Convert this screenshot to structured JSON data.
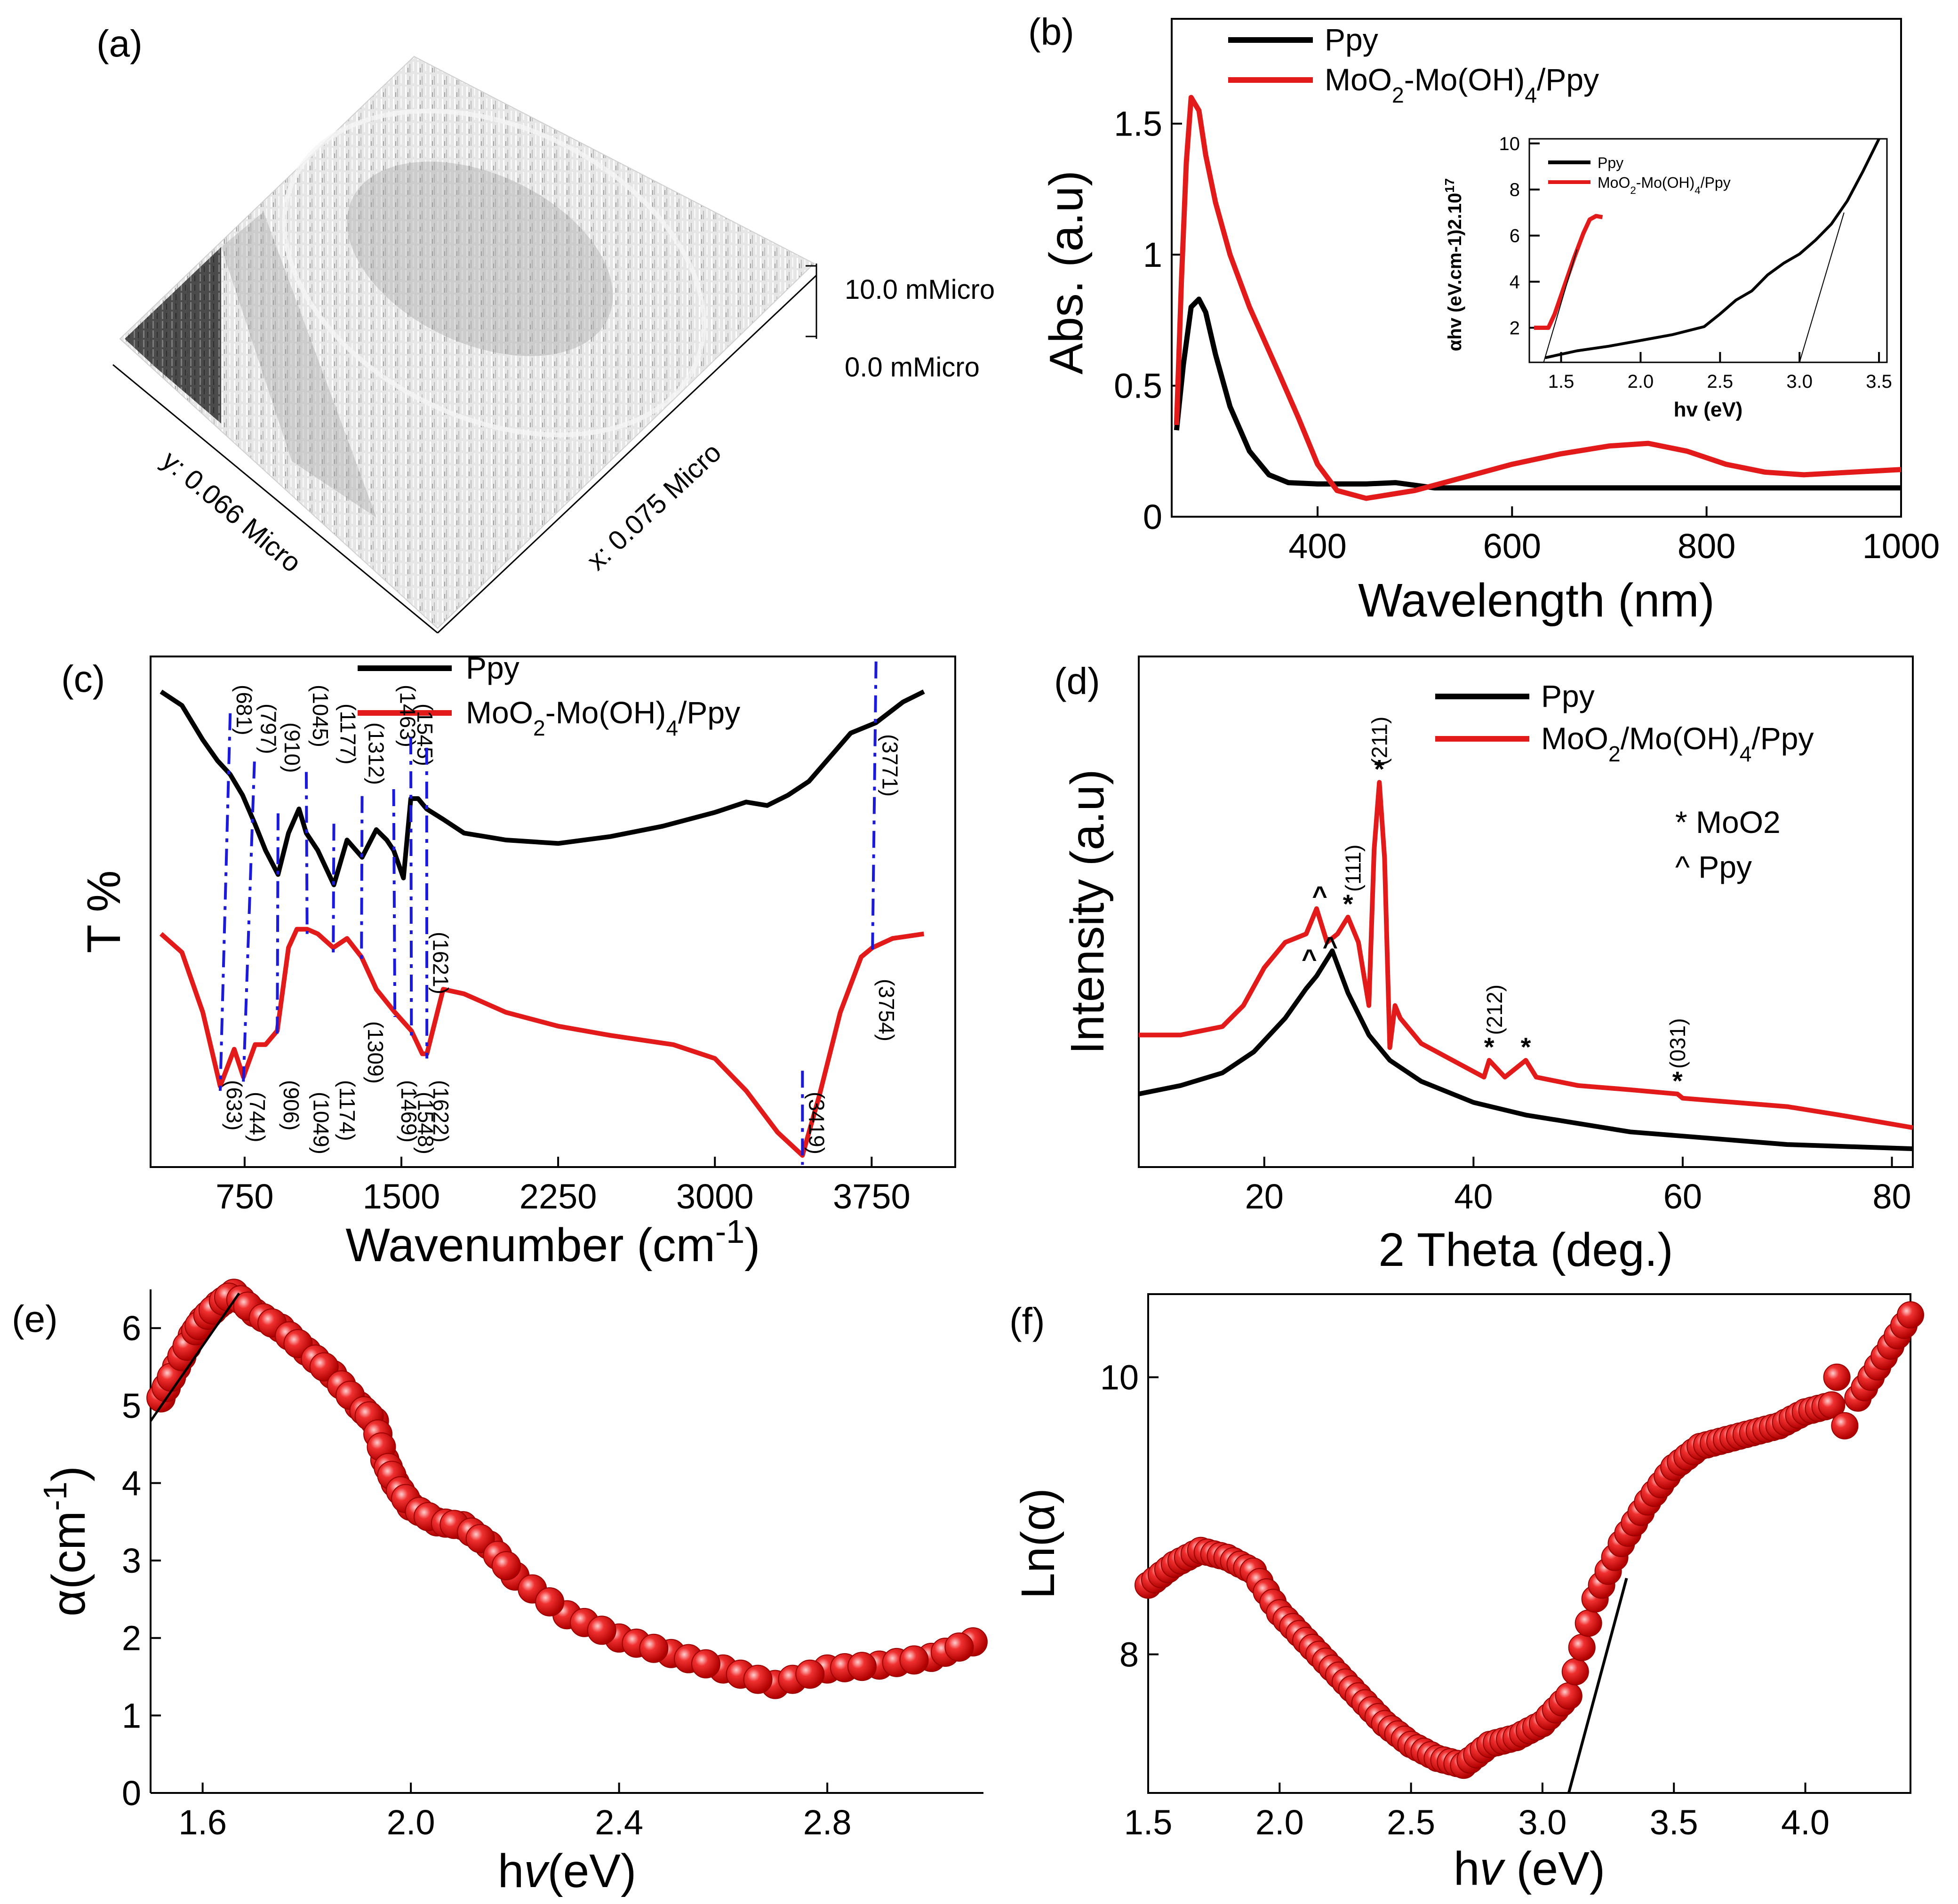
{
  "figure": {
    "panel_labels": [
      "(a)",
      "(b)",
      "(c)",
      "(d)",
      "(e)",
      "(f)"
    ]
  },
  "panel_a": {
    "label": "(a)",
    "x_axis_label": "x: 0.075 Micro",
    "y_axis_label": "y: 0.066 Micro",
    "z_top_label": "10.0 mMicro",
    "z_bottom_label": "0.0 mMicro"
  },
  "chart_data": [
    {
      "panel": "b",
      "label": "(b)",
      "type": "line",
      "title": "",
      "xlabel": "Wavelength (nm)",
      "ylabel": "Abs. (a.u)",
      "xlim": [
        250,
        1000
      ],
      "ylim": [
        0,
        1.9
      ],
      "xticks": [
        400,
        600,
        800,
        1000
      ],
      "yticks": [
        0.0,
        0.5,
        1.0,
        1.5
      ],
      "legend": [
        "Ppy",
        "MoO2-Mo(OH)4/Ppy"
      ],
      "series": [
        {
          "name": "Ppy",
          "color": "#000000",
          "x": [
            255,
            262,
            270,
            278,
            285,
            295,
            310,
            330,
            350,
            370,
            400,
            450,
            480,
            520,
            600,
            700,
            800,
            900,
            1000
          ],
          "y": [
            0.33,
            0.58,
            0.8,
            0.83,
            0.78,
            0.62,
            0.42,
            0.25,
            0.16,
            0.13,
            0.125,
            0.125,
            0.13,
            0.11,
            0.11,
            0.11,
            0.11,
            0.11,
            0.11
          ]
        },
        {
          "name": "MoO2-Mo(OH)4/Ppy",
          "color": "#e21a1a",
          "x": [
            255,
            260,
            265,
            270,
            278,
            285,
            295,
            310,
            330,
            360,
            380,
            400,
            420,
            450,
            500,
            550,
            600,
            650,
            700,
            740,
            780,
            820,
            860,
            900,
            950,
            1000
          ],
          "y": [
            0.35,
            0.9,
            1.35,
            1.6,
            1.55,
            1.38,
            1.2,
            1.0,
            0.8,
            0.55,
            0.38,
            0.2,
            0.1,
            0.07,
            0.1,
            0.15,
            0.2,
            0.24,
            0.27,
            0.28,
            0.25,
            0.2,
            0.17,
            0.16,
            0.17,
            0.18
          ]
        }
      ],
      "inset": {
        "xlabel": "hv (eV)",
        "ylabel": "αhv (eV.cm-1)2.10",
        "ylabel_sup": "17",
        "xlim": [
          1.3,
          3.55
        ],
        "ylim": [
          0.5,
          10.2
        ],
        "xticks": [
          1.5,
          2.0,
          2.5,
          3.0,
          3.5
        ],
        "yticks": [
          2,
          4,
          6,
          8,
          10
        ],
        "legend": [
          "Ppy",
          "MoO2-Mo(OH)4/Ppy"
        ],
        "series": [
          {
            "name": "Ppy",
            "color": "#000000",
            "x": [
              1.4,
              1.6,
              1.8,
              2.0,
              2.2,
              2.4,
              2.5,
              2.6,
              2.7,
              2.8,
              2.9,
              3.0,
              3.1,
              3.2,
              3.3,
              3.4,
              3.5
            ],
            "y": [
              0.7,
              1.0,
              1.2,
              1.45,
              1.7,
              2.05,
              2.6,
              3.2,
              3.6,
              4.3,
              4.8,
              5.2,
              5.8,
              6.5,
              7.5,
              8.8,
              10.2
            ]
          },
          {
            "name": "MoO2-Mo(OH)4/Ppy",
            "color": "#e21a1a",
            "x": [
              1.33,
              1.42,
              1.46,
              1.52,
              1.58,
              1.64,
              1.68,
              1.72,
              1.76
            ],
            "y": [
              2.0,
              2.0,
              2.6,
              3.8,
              5.0,
              6.1,
              6.7,
              6.85,
              6.8
            ]
          }
        ],
        "fit_lines": [
          {
            "x": [
              3.0,
              3.28
            ],
            "y": [
              0.5,
              7.0
            ]
          },
          {
            "x": [
              1.39,
              1.6
            ],
            "y": [
              0.5,
              5.4
            ]
          }
        ]
      }
    },
    {
      "panel": "c",
      "label": "(c)",
      "type": "line",
      "title": "",
      "xlabel": "Wavenumber (cm-1)",
      "ylabel": "T %",
      "xlim": [
        300,
        4150
      ],
      "ylim": [
        0,
        100
      ],
      "xticks": [
        750,
        1500,
        2250,
        3000,
        3750
      ],
      "legend": [
        "Ppy",
        "MoO2-Mo(OH)4/Ppy"
      ],
      "series": [
        {
          "name": "Ppy",
          "color": "#000000",
          "x": [
            350,
            450,
            550,
            620,
            681,
            740,
            797,
            850,
            910,
            960,
            1010,
            1045,
            1100,
            1177,
            1240,
            1312,
            1380,
            1430,
            1463,
            1510,
            1545,
            1580,
            1621,
            1700,
            1800,
            2000,
            2250,
            2500,
            2750,
            3000,
            3150,
            3250,
            3350,
            3450,
            3550,
            3650,
            3771,
            3900,
            4000
          ],
          "y": [
            98,
            94,
            84,
            78,
            74,
            68,
            60,
            52,
            45,
            57,
            64,
            57,
            52,
            42,
            55,
            50,
            58,
            55,
            52,
            44,
            67,
            67,
            64,
            61,
            57,
            55,
            54,
            56,
            59,
            63,
            66,
            65,
            68,
            72,
            79,
            86,
            89,
            95,
            98
          ],
          "labels": [
            "(681)",
            "(797)",
            "(910)",
            "(1045)",
            "(1177)",
            "(1312)",
            "(1463)",
            "(1545)",
            "(1621)",
            "(3771)"
          ]
        },
        {
          "name": "MoO2-Mo(OH)4/Ppy",
          "color": "#e21a1a",
          "x": [
            350,
            450,
            550,
            633,
            700,
            744,
            800,
            850,
            906,
            960,
            1000,
            1049,
            1100,
            1174,
            1240,
            1309,
            1380,
            1469,
            1548,
            1600,
            1622,
            1700,
            1800,
            2000,
            2250,
            2500,
            2800,
            3000,
            3150,
            3300,
            3419,
            3500,
            3600,
            3700,
            3754,
            3850,
            4000
          ],
          "y": [
            47,
            43,
            30,
            14,
            22,
            16,
            23,
            23,
            26,
            44,
            48,
            48,
            47,
            44,
            46,
            42,
            35,
            30,
            26,
            21,
            21,
            35,
            34,
            30,
            27,
            25,
            23,
            20,
            13,
            4,
            -1,
            12,
            30,
            42,
            44,
            46,
            47
          ],
          "labels": [
            "(633)",
            "(744)",
            "(906)",
            "(1049)",
            "(1174)",
            "(1309)",
            "(1469)",
            "(1548)",
            "(1622)",
            "(3419)",
            "(3754)"
          ]
        }
      ]
    },
    {
      "panel": "d",
      "label": "(d)",
      "type": "line",
      "title": "",
      "xlabel": "2 Theta (deg.)",
      "ylabel": "Intensity (a.u)",
      "xlim": [
        8,
        82
      ],
      "ylim": [
        0,
        100
      ],
      "xticks": [
        20,
        40,
        60,
        80
      ],
      "legend": [
        "Ppy",
        "MoO2/Mo(OH)4/Ppy"
      ],
      "series": [
        {
          "name": "Ppy",
          "color": "#000000",
          "x": [
            8,
            12,
            16,
            19,
            22,
            24,
            25,
            26.5,
            28,
            30,
            32,
            35,
            40,
            45,
            50,
            55,
            60,
            70,
            82
          ],
          "y": [
            14,
            16,
            19,
            24,
            32,
            39,
            42,
            48,
            38,
            28,
            22,
            17,
            12,
            9,
            7,
            5,
            4,
            2,
            1
          ]
        },
        {
          "name": "MoO2/Mo(OH)4/Ppy",
          "color": "#e21a1a",
          "x": [
            8,
            12,
            16,
            18,
            20,
            22,
            24,
            25,
            26,
            27,
            28,
            29,
            30,
            30.5,
            31,
            31.5,
            32,
            32.5,
            33,
            35,
            38,
            41,
            41.5,
            43,
            45,
            46,
            50,
            55,
            59.5,
            60,
            65,
            70,
            75,
            82
          ],
          "y": [
            28,
            28,
            30,
            35,
            44,
            50,
            52,
            58,
            50,
            52,
            56,
            50,
            35,
            72,
            88,
            70,
            25,
            35,
            32,
            26,
            22,
            18,
            22,
            18,
            22,
            18,
            16,
            15,
            14,
            13,
            12,
            11,
            9,
            6
          ]
        }
      ],
      "annotations": [
        {
          "text": "(211)",
          "x": 31,
          "y": 92,
          "rotated": true
        },
        {
          "text": "*",
          "x": 31,
          "y": 89
        },
        {
          "text": "(111)",
          "x": 28.5,
          "y": 62,
          "rotated": true
        },
        {
          "text": "*",
          "x": 28,
          "y": 57
        },
        {
          "text": "^",
          "x": 25.3,
          "y": 59
        },
        {
          "text": "^",
          "x": 24.3,
          "y": 44
        },
        {
          "text": "^",
          "x": 26.3,
          "y": 47
        },
        {
          "text": "(212)",
          "x": 42,
          "y": 28,
          "rotated": true
        },
        {
          "text": "*",
          "x": 41.5,
          "y": 23
        },
        {
          "text": "*",
          "x": 45,
          "y": 23
        },
        {
          "text": "(031)",
          "x": 59.5,
          "y": 20,
          "rotated": true
        },
        {
          "text": "*",
          "x": 59.5,
          "y": 15
        }
      ],
      "key": [
        "* MoO2",
        "^ Ppy"
      ]
    },
    {
      "panel": "e",
      "label": "(e)",
      "type": "scatter",
      "title": "",
      "xlabel": "hv(eV)",
      "ylabel": "α(cm-1)",
      "xlim": [
        1.5,
        3.1
      ],
      "ylim": [
        0,
        6.5
      ],
      "xticks": [
        1.6,
        2.0,
        2.4,
        2.8
      ],
      "yticks": [
        0,
        1,
        2,
        3,
        4,
        5,
        6
      ],
      "series": [
        {
          "name": "α",
          "color": "#e21a1a",
          "x": [
            1.52,
            1.55,
            1.58,
            1.6,
            1.63,
            1.66,
            1.7,
            1.75,
            1.8,
            1.85,
            1.9,
            1.93,
            1.95,
            1.97,
            2.0,
            2.05,
            2.1,
            2.15,
            2.2,
            2.3,
            2.4,
            2.5,
            2.6,
            2.7,
            2.8,
            2.9,
            3.0,
            3.08
          ],
          "y": [
            5.1,
            5.5,
            5.9,
            6.1,
            6.3,
            6.45,
            6.2,
            6.0,
            5.7,
            5.4,
            5.0,
            4.8,
            4.3,
            4.0,
            3.7,
            3.5,
            3.45,
            3.2,
            2.8,
            2.3,
            2.0,
            1.8,
            1.6,
            1.4,
            1.6,
            1.65,
            1.75,
            1.95
          ]
        }
      ],
      "fit_line": {
        "x": [
          1.5,
          1.67
        ],
        "y": [
          4.8,
          6.45
        ]
      }
    },
    {
      "panel": "f",
      "label": "(f)",
      "type": "scatter",
      "title": "",
      "xlabel": "hv (eV)",
      "ylabel": "Ln(α)",
      "xlim": [
        1.5,
        4.4
      ],
      "ylim": [
        7.0,
        10.6
      ],
      "xticks": [
        1.5,
        2.0,
        2.5,
        3.0,
        3.5,
        4.0
      ],
      "xtick_labels": [
        "1.5",
        "2.0",
        "2.5",
        "3.0",
        "3.5",
        "4.0"
      ],
      "yticks": [
        8,
        10
      ],
      "series": [
        {
          "name": "Ln(α)",
          "color": "#e21a1a",
          "x": [
            1.5,
            1.6,
            1.7,
            1.8,
            1.9,
            2.0,
            2.1,
            2.2,
            2.3,
            2.4,
            2.5,
            2.6,
            2.7,
            2.8,
            2.9,
            3.0,
            3.1,
            3.2,
            3.3,
            3.4,
            3.5,
            3.6,
            3.7,
            3.8,
            3.9,
            4.0,
            4.1,
            4.12,
            4.15,
            4.2,
            4.3,
            4.4
          ],
          "y": [
            8.5,
            8.65,
            8.75,
            8.7,
            8.6,
            8.3,
            8.1,
            7.9,
            7.7,
            7.5,
            7.35,
            7.25,
            7.2,
            7.35,
            7.4,
            7.5,
            7.7,
            8.4,
            8.8,
            9.1,
            9.35,
            9.5,
            9.55,
            9.6,
            9.65,
            9.75,
            9.8,
            10.0,
            9.65,
            9.85,
            10.15,
            10.45
          ]
        }
      ],
      "fit_line": {
        "x": [
          3.1,
          3.32
        ],
        "y": [
          7.0,
          8.55
        ]
      }
    }
  ]
}
